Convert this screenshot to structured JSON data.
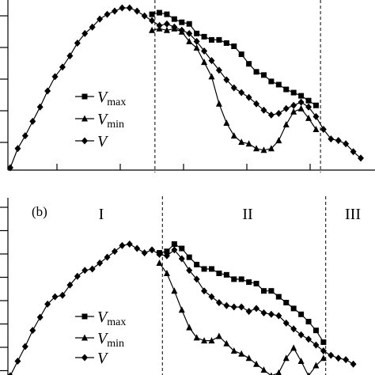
{
  "chart_data": [
    {
      "type": "line",
      "x": [
        0,
        1,
        2,
        3,
        4,
        5,
        6,
        7,
        8,
        9,
        10,
        11,
        12,
        13,
        14,
        15,
        16,
        17,
        18,
        19,
        20,
        21,
        22,
        23,
        24,
        25,
        26,
        27,
        28,
        29,
        30,
        31,
        32,
        33,
        34,
        35,
        36,
        37,
        38,
        39,
        40,
        41,
        42,
        43,
        44,
        45,
        46,
        47
      ],
      "ylim": [
        0,
        1
      ],
      "regions_x": [
        19.4,
        41.6
      ],
      "series": [
        {
          "name": "Vmax",
          "marker": "square",
          "x": [
            19,
            20,
            21,
            22,
            23,
            24,
            25,
            26,
            27,
            28,
            29,
            30,
            31,
            32,
            33,
            34,
            35,
            36,
            37,
            38,
            39,
            40,
            41
          ],
          "values": [
            0.96,
            0.97,
            0.96,
            0.93,
            0.91,
            0.9,
            0.84,
            0.82,
            0.8,
            0.8,
            0.78,
            0.76,
            0.71,
            0.65,
            0.6,
            0.58,
            0.54,
            0.52,
            0.49,
            0.47,
            0.45,
            0.42,
            0.39
          ]
        },
        {
          "name": "Vmin",
          "marker": "triangle",
          "x": [
            19,
            20,
            21,
            22,
            23,
            24,
            25,
            26,
            27,
            28,
            29,
            30,
            31,
            32,
            33,
            34,
            35,
            36,
            37,
            38,
            39,
            40,
            41
          ],
          "values": [
            0.86,
            0.87,
            0.86,
            0.87,
            0.85,
            0.79,
            0.75,
            0.66,
            0.57,
            0.4,
            0.28,
            0.2,
            0.16,
            0.15,
            0.12,
            0.11,
            0.12,
            0.17,
            0.27,
            0.35,
            0.37,
            0.31,
            0.24
          ]
        },
        {
          "name": "V",
          "marker": "diamond",
          "values": [
            0.0,
            0.12,
            0.2,
            0.29,
            0.38,
            0.48,
            0.57,
            0.63,
            0.7,
            0.78,
            0.84,
            0.88,
            0.93,
            0.96,
            0.98,
            1.0,
            1.0,
            0.98,
            0.95,
            0.92,
            0.89,
            0.9,
            0.88,
            0.86,
            0.84,
            0.79,
            0.73,
            0.67,
            0.61,
            0.55,
            0.5,
            0.47,
            0.44,
            0.4,
            0.36,
            0.33,
            0.34,
            0.37,
            0.39,
            0.41,
            0.38,
            0.32,
            0.24,
            0.18,
            0.17,
            0.15,
            0.1,
            0.06
          ]
        }
      ],
      "legend": "center-left"
    },
    {
      "type": "line",
      "panel_label": "(b)",
      "regions": [
        "I",
        "II",
        "III"
      ],
      "regions_x": [
        20.4,
        42.3
      ],
      "ylim": [
        0,
        1
      ],
      "series": [
        {
          "name": "Vmax",
          "marker": "square",
          "x": [
            20,
            21,
            22,
            23,
            24,
            25,
            26,
            27,
            28,
            29,
            30,
            31,
            32,
            33,
            34,
            35,
            36,
            37,
            38,
            39,
            40,
            41,
            42
          ],
          "values": [
            0.84,
            0.85,
            0.9,
            0.87,
            0.81,
            0.76,
            0.73,
            0.73,
            0.7,
            0.69,
            0.66,
            0.66,
            0.64,
            0.63,
            0.58,
            0.58,
            0.54,
            0.5,
            0.46,
            0.42,
            0.37,
            0.31,
            0.23
          ]
        },
        {
          "name": "Vmin",
          "marker": "triangle",
          "x": [
            20,
            21,
            22,
            23,
            24,
            25,
            26,
            27,
            28,
            29,
            30,
            31,
            32,
            33,
            34,
            35,
            36,
            37,
            38,
            39,
            40,
            41,
            42
          ],
          "values": [
            0.77,
            0.7,
            0.58,
            0.45,
            0.33,
            0.26,
            0.24,
            0.24,
            0.27,
            0.22,
            0.17,
            0.15,
            0.12,
            0.08,
            0.04,
            0.0,
            0.02,
            0.12,
            0.19,
            0.1,
            0.0,
            0.07,
            0.12
          ]
        },
        {
          "name": "V",
          "marker": "diamond",
          "values": [
            0.0,
            0.1,
            0.2,
            0.31,
            0.4,
            0.49,
            0.54,
            0.55,
            0.62,
            0.68,
            0.72,
            0.73,
            0.77,
            0.81,
            0.85,
            0.89,
            0.9,
            0.87,
            0.84,
            0.86,
            0.83,
            0.82,
            0.86,
            0.8,
            0.72,
            0.66,
            0.58,
            0.54,
            0.5,
            0.48,
            0.47,
            0.47,
            0.44,
            0.46,
            0.43,
            0.42,
            0.41,
            0.36,
            0.32,
            0.28,
            0.25,
            0.21,
            0.17,
            0.14,
            0.12,
            0.11,
            0.08
          ]
        }
      ],
      "legend": "bottom-left"
    }
  ],
  "legend_labels": [
    {
      "main": "V",
      "sub": "max"
    },
    {
      "main": "V",
      "sub": "min"
    },
    {
      "main": "V",
      "sub": ""
    }
  ],
  "panel_b_label": "(b)",
  "region_labels": [
    "I",
    "II",
    "III"
  ]
}
